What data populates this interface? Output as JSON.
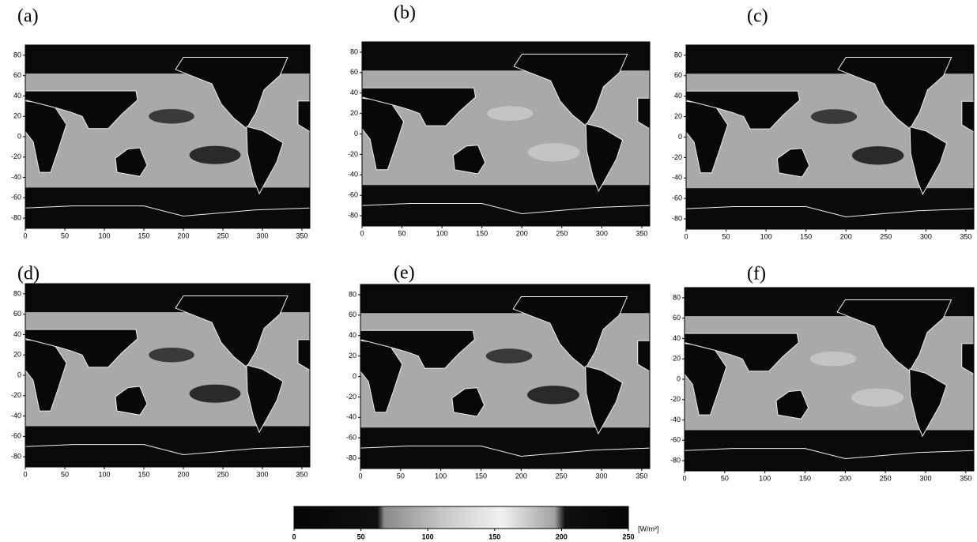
{
  "chart_data": [
    {
      "type": "heatmap",
      "title": "(a)",
      "xlim": [
        0,
        360
      ],
      "ylim": [
        -90,
        90
      ],
      "xticks": [
        0,
        50,
        100,
        150,
        200,
        250,
        300,
        350
      ],
      "yticks": [
        80,
        60,
        40,
        20,
        0,
        -20,
        -40,
        -60,
        -80
      ]
    },
    {
      "type": "heatmap",
      "title": "(b)",
      "xlim": [
        0,
        360
      ],
      "ylim": [
        -90,
        90
      ],
      "xticks": [
        0,
        50,
        100,
        150,
        200,
        250,
        300,
        350
      ],
      "yticks": [
        80,
        60,
        40,
        20,
        0,
        -20,
        -40,
        -60,
        -80
      ]
    },
    {
      "type": "heatmap",
      "title": "(c)",
      "xlim": [
        0,
        360
      ],
      "ylim": [
        -90,
        90
      ],
      "xticks": [
        0,
        50,
        100,
        150,
        200,
        250,
        300,
        350
      ],
      "yticks": [
        80,
        60,
        40,
        20,
        0,
        -20,
        -40,
        -60,
        -80
      ]
    },
    {
      "type": "heatmap",
      "title": "(d)",
      "xlim": [
        0,
        360
      ],
      "ylim": [
        -90,
        90
      ],
      "xticks": [
        0,
        50,
        100,
        150,
        200,
        250,
        300,
        350
      ],
      "yticks": [
        80,
        60,
        40,
        20,
        0,
        -20,
        -40,
        -60,
        -80
      ]
    },
    {
      "type": "heatmap",
      "title": "(e)",
      "xlim": [
        0,
        360
      ],
      "ylim": [
        -90,
        90
      ],
      "xticks": [
        0,
        50,
        100,
        150,
        200,
        250,
        300,
        350
      ],
      "yticks": [
        80,
        60,
        40,
        20,
        0,
        -20,
        -40,
        -60,
        -80
      ]
    },
    {
      "type": "heatmap",
      "title": "(f)",
      "xlim": [
        0,
        360
      ],
      "ylim": [
        -90,
        90
      ],
      "xticks": [
        0,
        50,
        100,
        150,
        200,
        250,
        300,
        350
      ],
      "yticks": [
        80,
        60,
        40,
        20,
        0,
        -20,
        -40,
        -60,
        -80
      ]
    }
  ],
  "colorbar": {
    "lim": [
      0,
      250
    ],
    "ticks": [
      0,
      50,
      100,
      150,
      200,
      250
    ],
    "unit": "[W/m²]"
  }
}
